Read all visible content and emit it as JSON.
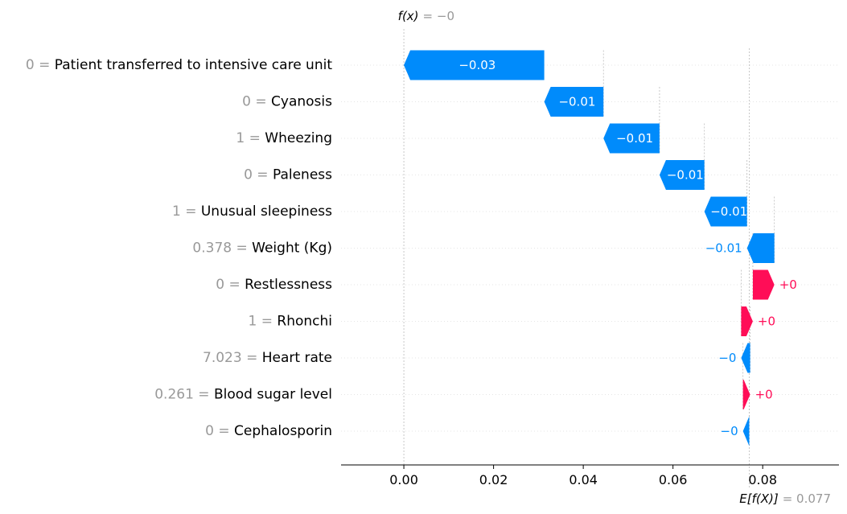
{
  "chart_data": {
    "type": "waterfall",
    "fx_label": {
      "name": "f(x)",
      "value": "= −0"
    },
    "ex_label": {
      "name": "E[f(X)]",
      "value": "= 0.077"
    },
    "base_value": 0.077,
    "final_value": -0.0,
    "xlim": [
      -0.014,
      0.097
    ],
    "xticks": [
      0.0,
      0.02,
      0.04,
      0.06,
      0.08
    ],
    "xtick_labels": [
      "0.00",
      "0.02",
      "0.04",
      "0.06",
      "0.08"
    ],
    "colors": {
      "positive": "#ff0d57",
      "negative": "#008bfb"
    },
    "features": [
      {
        "value": "0",
        "name": "Patient transferred to intensive care unit",
        "start": 0.0313,
        "end": 0.0,
        "label": "−0.03"
      },
      {
        "value": "0",
        "name": "Cyanosis",
        "start": 0.0445,
        "end": 0.0313,
        "label": "−0.01"
      },
      {
        "value": "1",
        "name": "Wheezing",
        "start": 0.057,
        "end": 0.0445,
        "label": "−0.01"
      },
      {
        "value": "0",
        "name": "Paleness",
        "start": 0.067,
        "end": 0.057,
        "label": "−0.01"
      },
      {
        "value": "1",
        "name": "Unusual sleepiness",
        "start": 0.0765,
        "end": 0.067,
        "label": "−0.01"
      },
      {
        "value": "0.378",
        "name": "Weight (Kg)",
        "start": 0.0826,
        "end": 0.0765,
        "label": "−0.01"
      },
      {
        "value": "0",
        "name": "Restlessness",
        "start": 0.0778,
        "end": 0.0826,
        "label": "+0"
      },
      {
        "value": "1",
        "name": "Rhonchi",
        "start": 0.0752,
        "end": 0.0778,
        "label": "+0"
      },
      {
        "value": "7.023",
        "name": "Heart rate",
        "start": 0.0772,
        "end": 0.0752,
        "label": "−0"
      },
      {
        "value": "0.261",
        "name": "Blood sugar level",
        "start": 0.0756,
        "end": 0.0772,
        "label": "+0"
      },
      {
        "value": "0",
        "name": "Cephalosporin",
        "start": 0.077,
        "end": 0.0756,
        "label": "−0"
      }
    ]
  }
}
